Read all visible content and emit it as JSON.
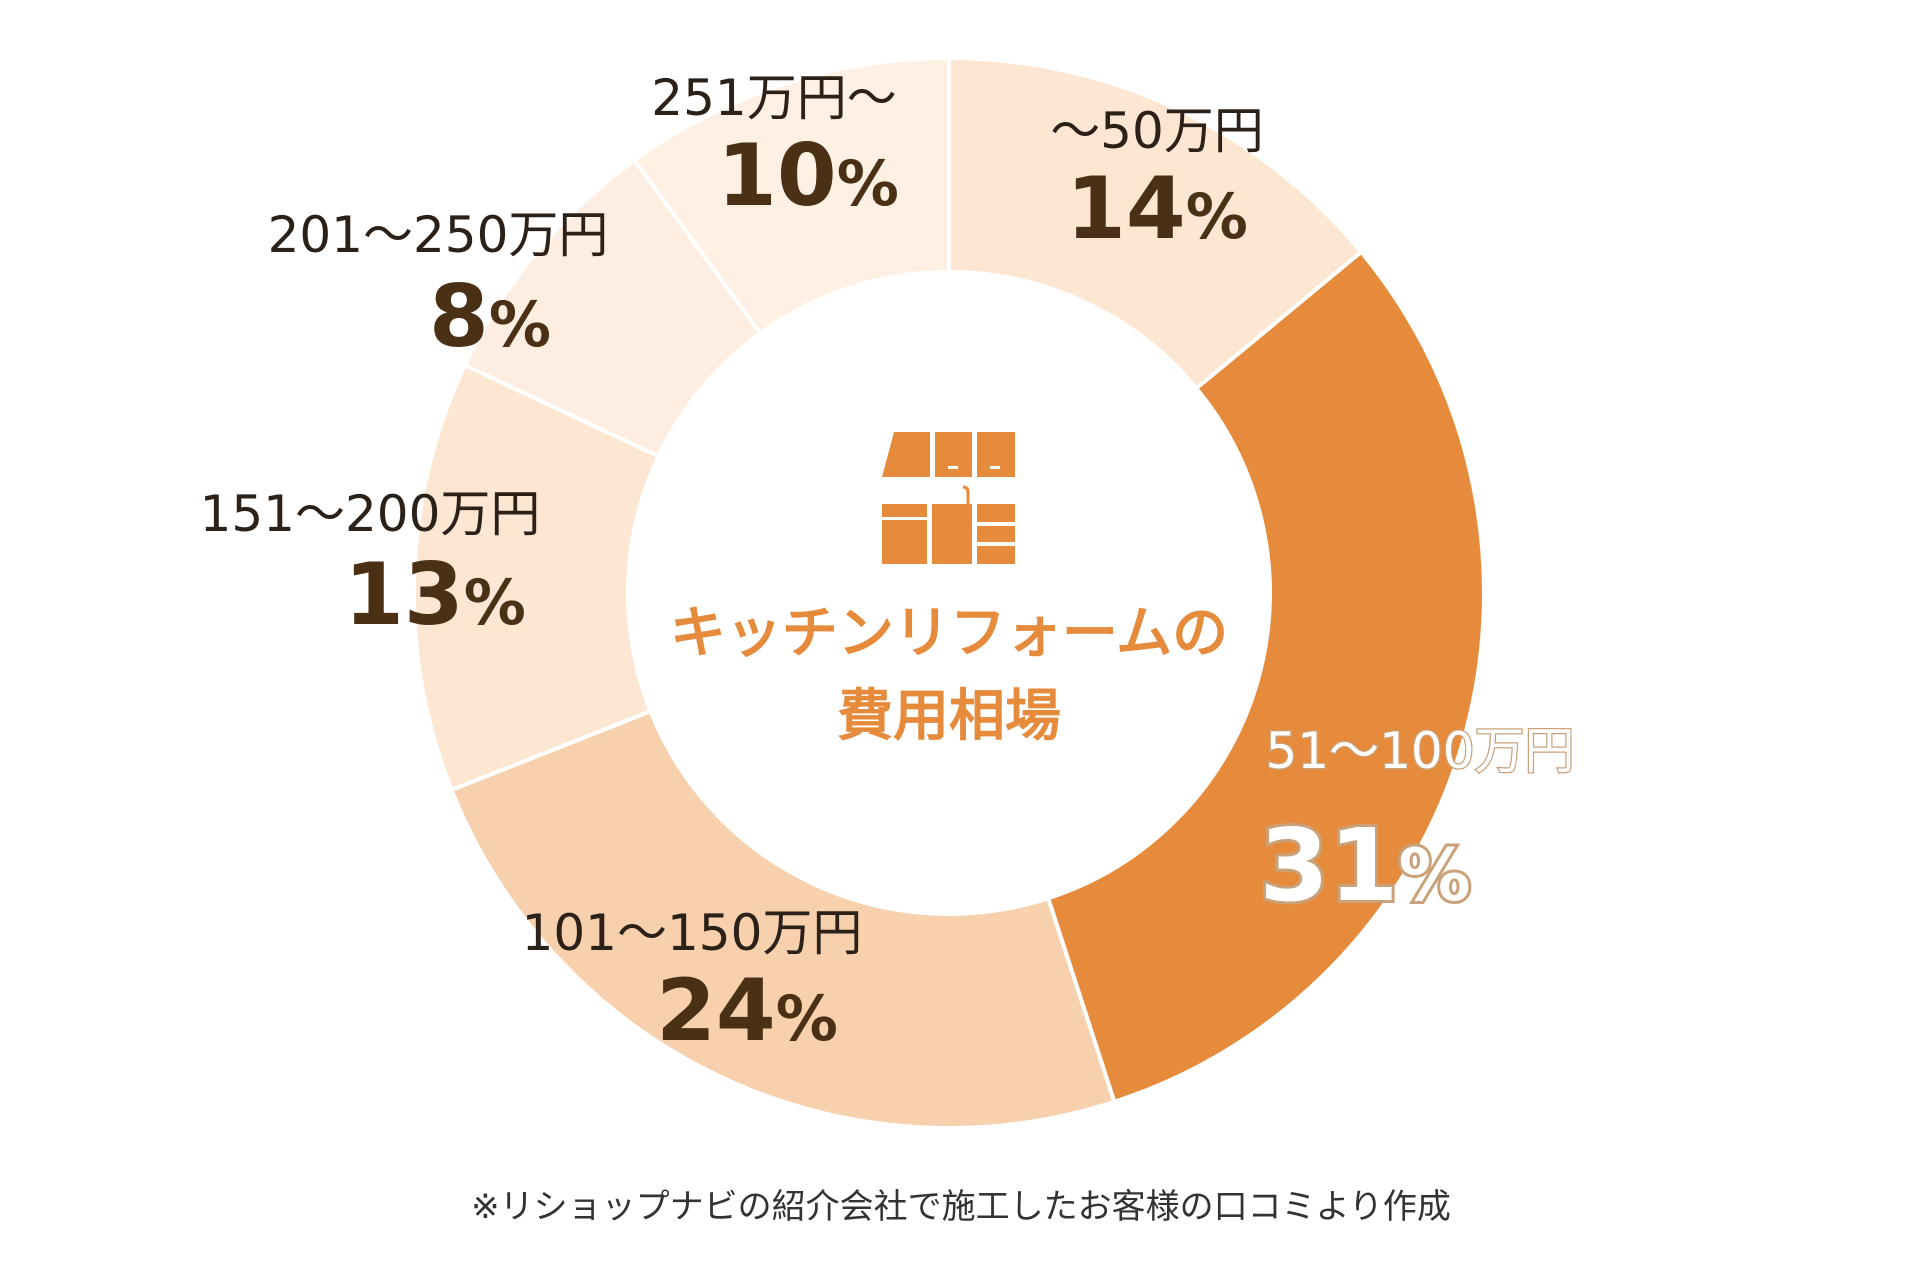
{
  "chart_data": {
    "type": "pie",
    "donut": true,
    "start": "top, clockwise",
    "center_title": [
      "キッチンリフォームの",
      "費用相場"
    ],
    "center_icon": "kitchen-icon",
    "categories": [
      "〜50万円",
      "51〜100万円",
      "101〜150万円",
      "151〜200万円",
      "201〜250万円",
      "251万円〜"
    ],
    "values": [
      14,
      31,
      24,
      13,
      8,
      10
    ],
    "value_labels": [
      "14",
      "31",
      "24",
      "13",
      "8",
      "10"
    ],
    "unit": "%",
    "colors": [
      "#fde6d2",
      "#e68b3c",
      "#f7d0ad",
      "#fde6d2",
      "#fdeee1",
      "#fef0e3"
    ],
    "highlight": "51〜100万円",
    "footnote": "※リショップナビの紹介会社で施工したお客様の口コミより作成"
  }
}
